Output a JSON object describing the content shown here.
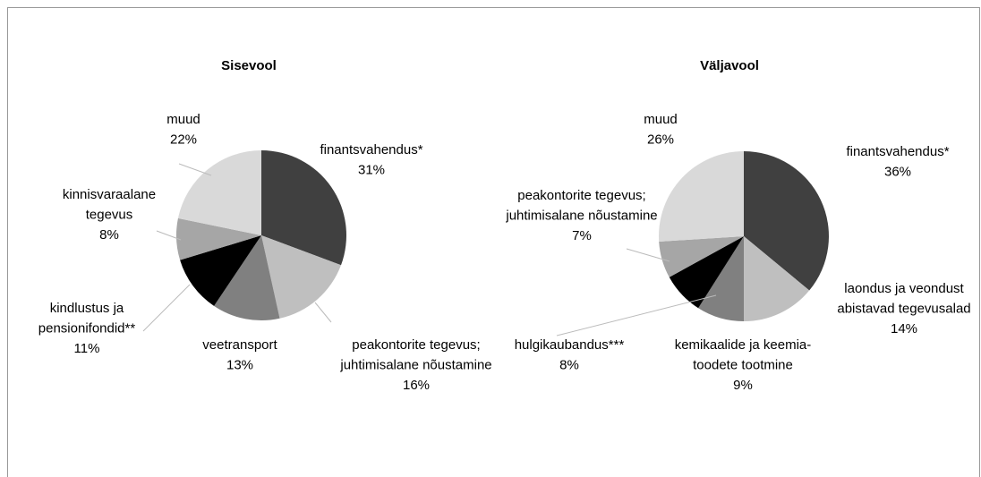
{
  "chart_data": [
    {
      "type": "pie",
      "title": "Sisevool",
      "categories": [
        "finantsvahendus*",
        "peakontorite tegevus;\njuhtimisalane nõustamine",
        "veetransport",
        "kindlustus ja\npensionifondid**",
        "kinnisvaraalane\ntegevus",
        "muud"
      ],
      "values": [
        31,
        16,
        13,
        11,
        8,
        22
      ],
      "value_labels": [
        "31%",
        "16%",
        "13%",
        "11%",
        "8%",
        "22%"
      ],
      "colors": [
        "#404040",
        "#bfbfbf",
        "#808080",
        "#000000",
        "#a6a6a6",
        "#d9d9d9"
      ]
    },
    {
      "type": "pie",
      "title": "Väljavool",
      "categories": [
        "finantsvahendus*",
        "laondus ja veondust\nabistavad tegevusalad",
        "kemikaalide ja keemia-\ntoodete tootmine",
        "hulgikaubandus***",
        "peakontorite tegevus;\njuhtimisalane nõustamine",
        "muud"
      ],
      "values": [
        36,
        14,
        9,
        8,
        7,
        26
      ],
      "value_labels": [
        "36%",
        "14%",
        "9%",
        "8%",
        "7%",
        "26%"
      ],
      "colors": [
        "#404040",
        "#bfbfbf",
        "#808080",
        "#000000",
        "#a6a6a6",
        "#d9d9d9"
      ]
    }
  ]
}
